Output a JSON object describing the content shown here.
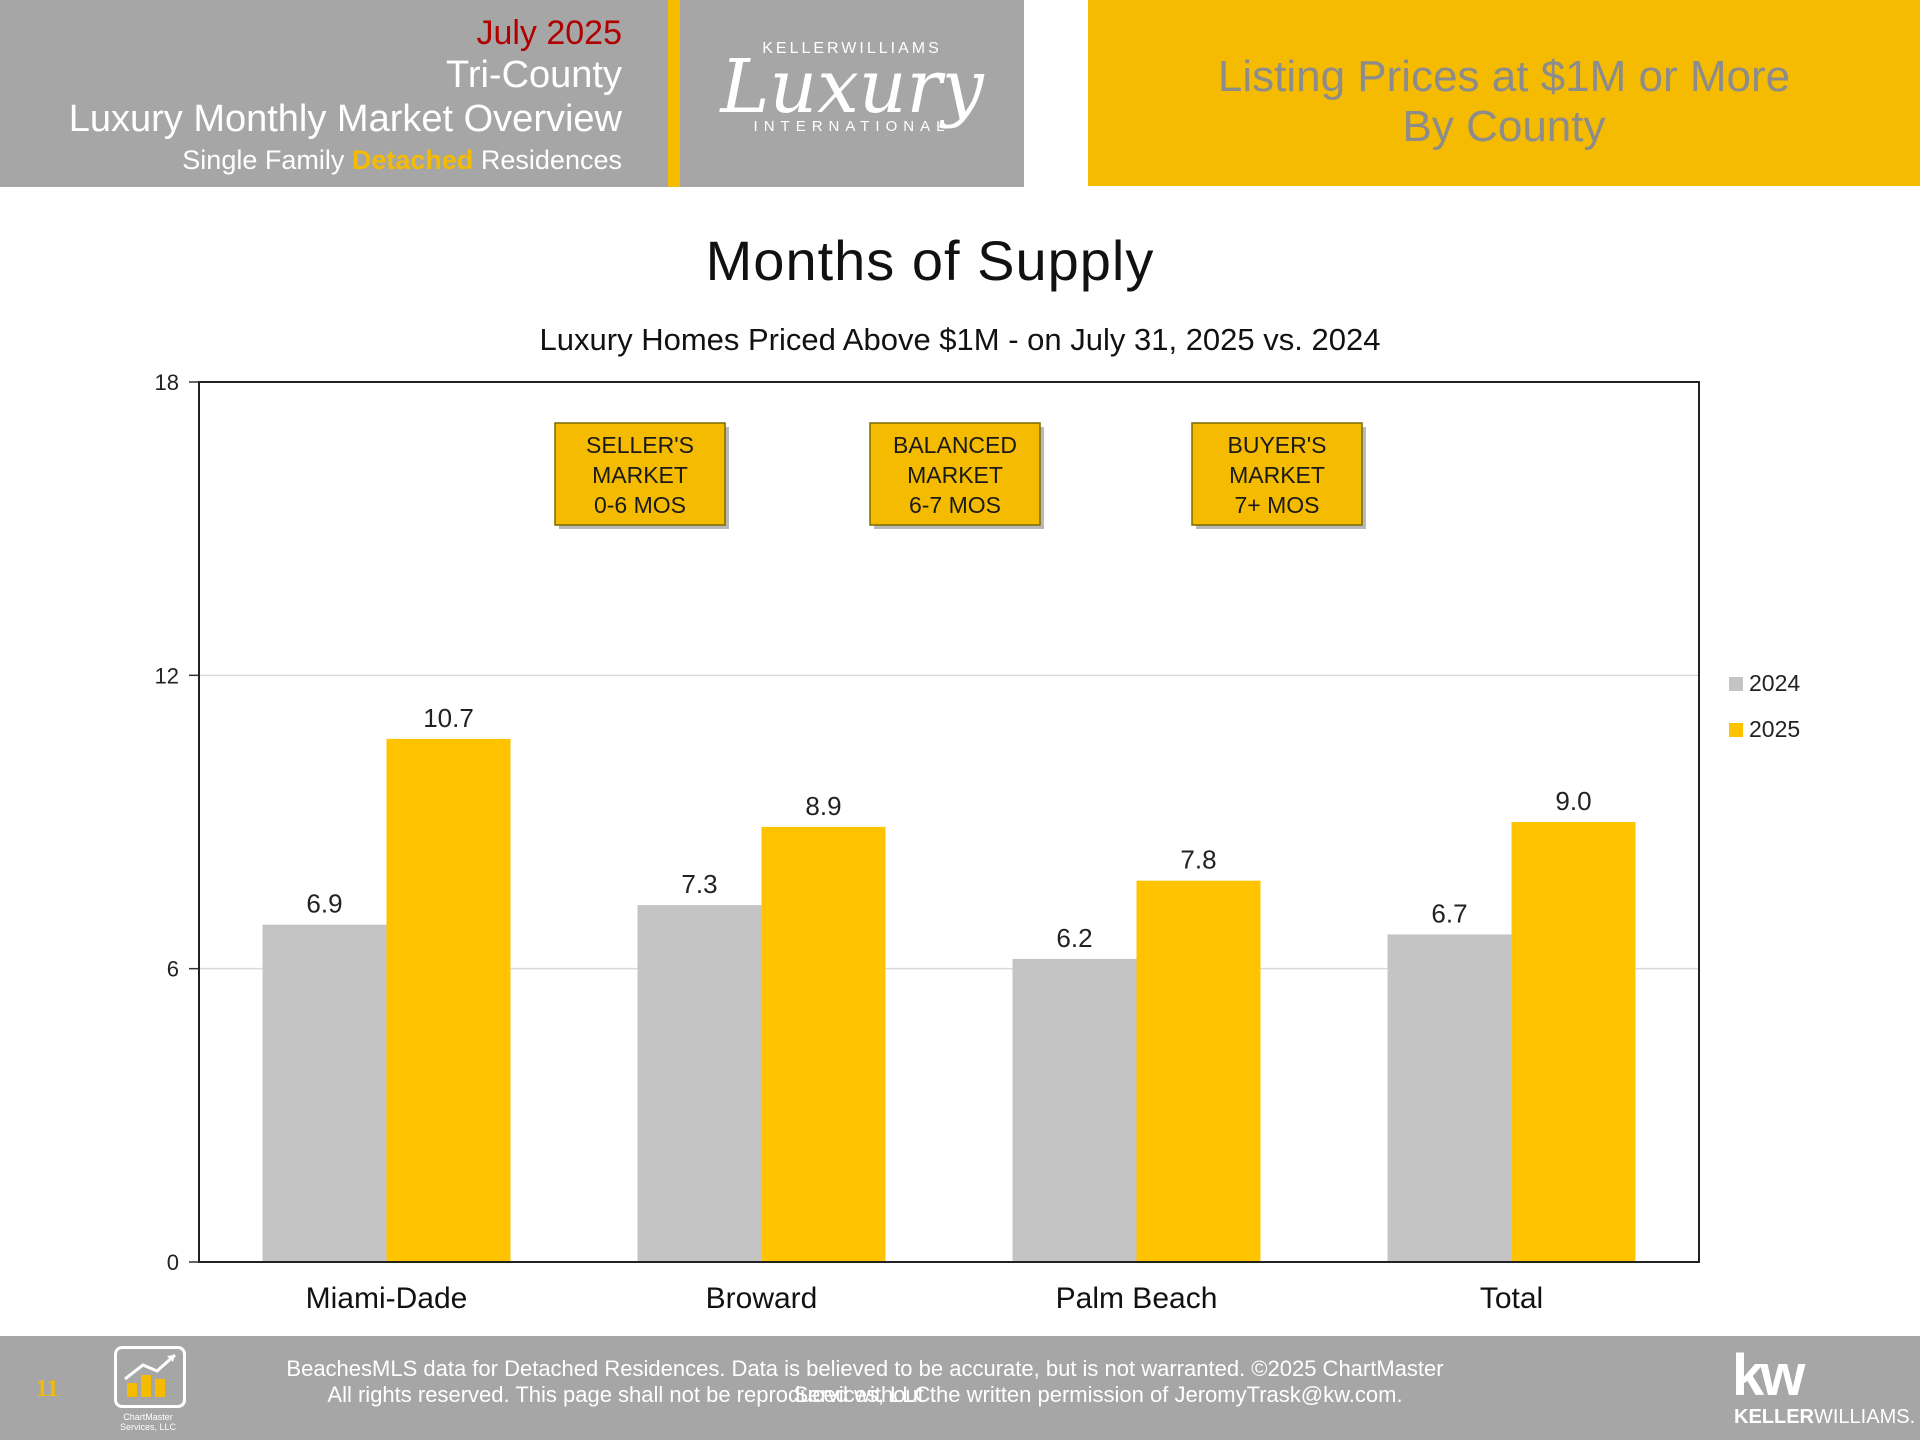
{
  "header": {
    "date": "July 2025",
    "region": "Tri-County",
    "title": "Luxury Monthly Market Overview",
    "subtitle_prefix": "Single Family ",
    "subtitle_highlight": "Detached",
    "subtitle_suffix": " Residences",
    "logo_top": "KELLERWILLIAMS",
    "logo_script": "Luxury",
    "logo_bottom": "INTERNATIONAL",
    "right_line1": "Listing Prices at $1M or More",
    "right_line2": "By County"
  },
  "colors": {
    "accent": "#f5bb00",
    "header_gray": "#a6a6a6",
    "series_2024": "#c4c4c4",
    "series_2025": "#ffc300",
    "date_red": "#b00000"
  },
  "chart_data": {
    "type": "bar",
    "title": "Months of Supply",
    "subtitle": "Luxury Homes Priced Above $1M - on July 31,  2025 vs. 2024",
    "categories": [
      "Miami-Dade",
      "Broward",
      "Palm Beach",
      "Total"
    ],
    "series": [
      {
        "name": "2024",
        "values": [
          6.9,
          7.3,
          6.2,
          6.7
        ],
        "labels": [
          "6.9",
          "7.3",
          "6.2",
          "6.7"
        ]
      },
      {
        "name": "2025",
        "values": [
          10.7,
          8.9,
          7.8,
          9.0
        ],
        "labels": [
          "10.7",
          "8.9",
          "7.8",
          "9.0"
        ]
      }
    ],
    "ylim": [
      0,
      18
    ],
    "yticks": [
      "0",
      "6",
      "12",
      "18"
    ],
    "grid": true,
    "legend": "right",
    "annotations": [
      [
        "SELLER'S",
        "MARKET",
        "0-6 MOS"
      ],
      [
        "BALANCED",
        "MARKET",
        "6-7 MOS"
      ],
      [
        "BUYER'S",
        "MARKET",
        "7+ MOS"
      ]
    ]
  },
  "footer": {
    "page_number": "11",
    "logo_text_1": "ChartMaster",
    "logo_text_2": "Services, LLC",
    "line1": "BeachesMLS data for Detached Residences.  Data is believed to be accurate, but is not warranted.   ©2025  ChartMaster Services, LLC.",
    "line2": "All rights reserved. This page shall not be reproduced without the written permission of JeromyTrask@kw.com.",
    "kw_mark": "kw",
    "kw_name_bold": "KELLER",
    "kw_name_rest": "WILLIAMS."
  }
}
